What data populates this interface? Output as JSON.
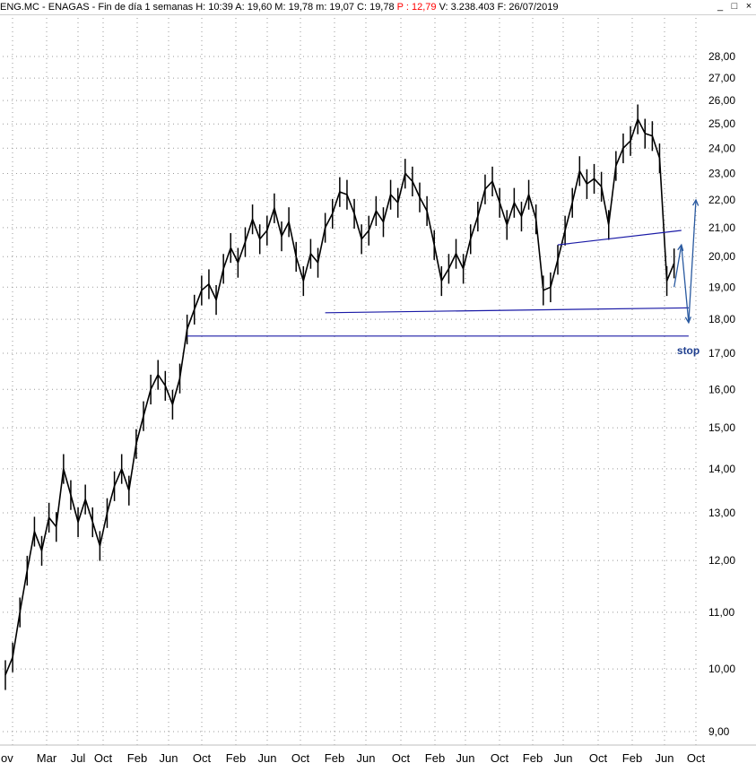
{
  "window": {
    "title_prefix": "ENG.MC - ENAGAS - Fin de día 1 semanas  H: 10:39  A: 19,60  M: 19,78  m: 19,07  C: 19,78  ",
    "title_p": "P : 12,79",
    "title_suffix": "  V: 3.238.403  F: 26/07/2019",
    "controls": [
      "_",
      "□",
      "×"
    ]
  },
  "chart_data": {
    "type": "line",
    "ticker": "ENG.MC",
    "name": "ENAGAS",
    "interval": "1 semanas",
    "scale": "log",
    "grid": true,
    "y_ticks": [
      9.0,
      10.0,
      11.0,
      12.0,
      13.0,
      14.0,
      15.0,
      16.0,
      17.0,
      18.0,
      19.0,
      20.0,
      21.0,
      22.0,
      23.0,
      24.0,
      25.0,
      26.0,
      27.0,
      28.0
    ],
    "y_tick_labels": [
      "9,00",
      "10,00",
      "11,00",
      "12,00",
      "13,00",
      "14,00",
      "15,00",
      "16,00",
      "17,00",
      "18,00",
      "19,00",
      "20,00",
      "21,00",
      "22,00",
      "23,00",
      "24,00",
      "25,00",
      "26,00",
      "27,00",
      "28,00"
    ],
    "x_tick_labels": [
      "ov",
      "Mar",
      "Jul",
      "Oct",
      "Feb",
      "Jun",
      "Oct",
      "Feb",
      "Jun",
      "Oct",
      "Feb",
      "Jun",
      "Oct",
      "Feb",
      "Jun",
      "Oct",
      "Feb",
      "Jun",
      "Oct",
      "Feb",
      "Jun",
      "Oct"
    ],
    "series": [
      {
        "values": [
          [
            "2011-11",
            9.9
          ],
          [
            "2011-12",
            10.2
          ],
          [
            "2012-01",
            11.0
          ],
          [
            "2012-02",
            11.8
          ],
          [
            "2012-03",
            12.6
          ],
          [
            "2012-04",
            12.2
          ],
          [
            "2012-05",
            12.9
          ],
          [
            "2012-06",
            12.7
          ],
          [
            "2012-07",
            14.0
          ],
          [
            "2012-08",
            13.4
          ],
          [
            "2012-09",
            12.8
          ],
          [
            "2012-10",
            13.3
          ],
          [
            "2012-11",
            12.8
          ],
          [
            "2012-12",
            12.3
          ],
          [
            "2013-01",
            13.0
          ],
          [
            "2013-02",
            13.6
          ],
          [
            "2013-03",
            14.0
          ],
          [
            "2013-04",
            13.5
          ],
          [
            "2013-05",
            14.6
          ],
          [
            "2013-06",
            15.3
          ],
          [
            "2013-07",
            16.0
          ],
          [
            "2013-08",
            16.4
          ],
          [
            "2013-09",
            16.1
          ],
          [
            "2013-10",
            15.6
          ],
          [
            "2013-11",
            16.3
          ],
          [
            "2013-12",
            17.7
          ],
          [
            "2014-01",
            18.3
          ],
          [
            "2014-02",
            18.9
          ],
          [
            "2014-03",
            19.1
          ],
          [
            "2014-04",
            18.6
          ],
          [
            "2014-05",
            19.6
          ],
          [
            "2014-06",
            20.3
          ],
          [
            "2014-07",
            19.8
          ],
          [
            "2014-08",
            20.5
          ],
          [
            "2014-09",
            21.3
          ],
          [
            "2014-10",
            20.6
          ],
          [
            "2014-11",
            20.9
          ],
          [
            "2014-12",
            21.7
          ],
          [
            "2015-01",
            20.7
          ],
          [
            "2015-02",
            21.2
          ],
          [
            "2015-03",
            20.0
          ],
          [
            "2015-04",
            19.2
          ],
          [
            "2015-05",
            20.1
          ],
          [
            "2015-06",
            19.8
          ],
          [
            "2015-07",
            21.0
          ],
          [
            "2015-08",
            21.5
          ],
          [
            "2015-09",
            22.3
          ],
          [
            "2015-10",
            22.2
          ],
          [
            "2015-11",
            21.5
          ],
          [
            "2015-12",
            20.6
          ],
          [
            "2016-01",
            20.9
          ],
          [
            "2016-02",
            21.6
          ],
          [
            "2016-03",
            21.2
          ],
          [
            "2016-04",
            22.2
          ],
          [
            "2016-05",
            21.9
          ],
          [
            "2016-06",
            23.0
          ],
          [
            "2016-07",
            22.7
          ],
          [
            "2016-08",
            22.1
          ],
          [
            "2016-09",
            21.6
          ],
          [
            "2016-10",
            20.4
          ],
          [
            "2016-11",
            19.2
          ],
          [
            "2016-12",
            19.6
          ],
          [
            "2017-01",
            20.1
          ],
          [
            "2017-02",
            19.6
          ],
          [
            "2017-03",
            20.6
          ],
          [
            "2017-04",
            21.4
          ],
          [
            "2017-05",
            22.4
          ],
          [
            "2017-06",
            22.7
          ],
          [
            "2017-07",
            21.9
          ],
          [
            "2017-08",
            21.1
          ],
          [
            "2017-09",
            21.9
          ],
          [
            "2017-10",
            21.4
          ],
          [
            "2017-11",
            22.2
          ],
          [
            "2017-12",
            21.3
          ],
          [
            "2018-01",
            18.9
          ],
          [
            "2018-02",
            19.0
          ],
          [
            "2018-03",
            19.9
          ],
          [
            "2018-04",
            20.9
          ],
          [
            "2018-05",
            21.9
          ],
          [
            "2018-06",
            23.1
          ],
          [
            "2018-07",
            22.6
          ],
          [
            "2018-08",
            22.8
          ],
          [
            "2018-09",
            22.5
          ],
          [
            "2018-10",
            21.1
          ],
          [
            "2018-11",
            23.3
          ],
          [
            "2018-12",
            24.0
          ],
          [
            "2019-01",
            24.3
          ],
          [
            "2019-02",
            25.2
          ],
          [
            "2019-03",
            24.6
          ],
          [
            "2019-04",
            24.5
          ],
          [
            "2019-05",
            23.6
          ],
          [
            "2019-06",
            19.2
          ],
          [
            "2019-07",
            19.78
          ]
        ]
      }
    ],
    "annotations": [
      {
        "type": "support-line",
        "start": [
          "2013-12",
          17.5
        ],
        "end": [
          "2019-09",
          17.5
        ]
      },
      {
        "type": "support-line",
        "start": [
          "2015-07",
          18.2
        ],
        "end": [
          "2019-09",
          18.35
        ]
      },
      {
        "type": "trend-line",
        "start": [
          "2018-03",
          20.4
        ],
        "end": [
          "2019-08",
          20.9
        ]
      },
      {
        "type": "projection-arrows",
        "points": [
          [
            "2019-07",
            19.0
          ],
          [
            "2019-08",
            20.4
          ],
          [
            "2019-09",
            17.9
          ],
          [
            "2019-10",
            22.0
          ]
        ]
      },
      {
        "type": "text",
        "text": "stop",
        "at": [
          "2019-09",
          17.1
        ]
      }
    ],
    "colors": {
      "price": "#000000",
      "lines": "#1a1aa6",
      "arrows": "#2a5aa0",
      "stop_text": "#1f3f8f",
      "grid": "#999999"
    }
  }
}
